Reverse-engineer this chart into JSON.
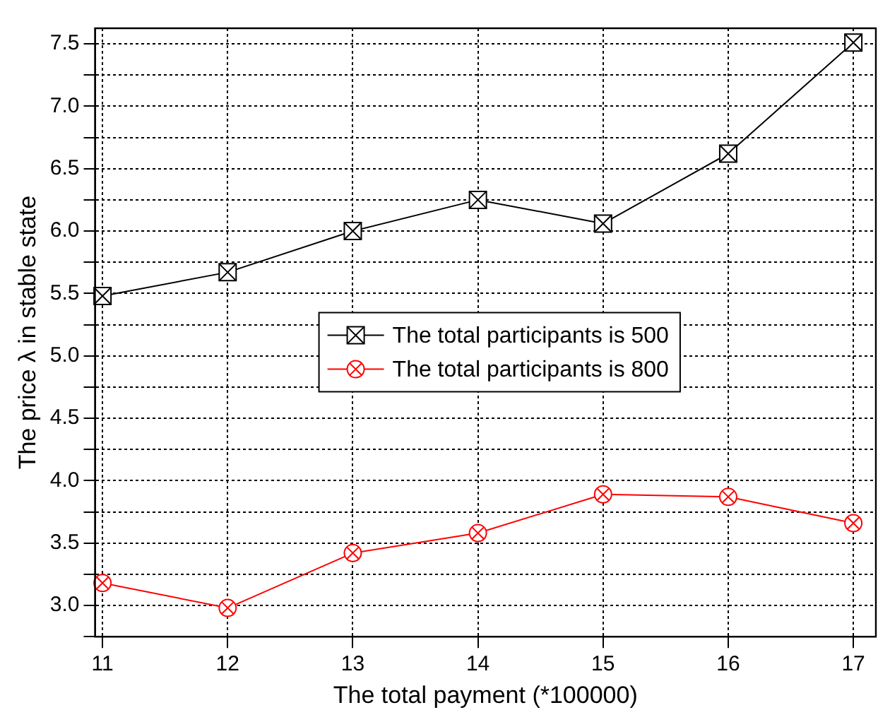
{
  "chart_data": {
    "type": "line",
    "xlabel": "The total payment (*100000)",
    "ylabel": "The price λ in stable state",
    "x": [
      11,
      12,
      13,
      14,
      15,
      16,
      17
    ],
    "series": [
      {
        "name": "The total participants is 500",
        "color": "#000000",
        "marker": "square",
        "values": [
          5.48,
          5.67,
          6.0,
          6.25,
          6.06,
          6.62,
          7.51
        ]
      },
      {
        "name": "The total participants is 800",
        "color": "#ff0000",
        "marker": "circle",
        "values": [
          3.18,
          2.98,
          3.42,
          3.58,
          3.89,
          3.87,
          3.66
        ]
      }
    ],
    "xlim": [
      10.94,
      17.18
    ],
    "xticks": [
      11,
      12,
      13,
      14,
      15,
      16,
      17
    ],
    "ylim": [
      2.75,
      7.625
    ],
    "yticks": [
      {
        "value": 2.75,
        "label": null
      },
      {
        "value": 3,
        "label": "3.0"
      },
      {
        "value": 3.25,
        "label": null
      },
      3.5,
      {
        "value": 3.75,
        "label": null
      },
      {
        "value": 4,
        "label": "4.0"
      },
      {
        "value": 4.25,
        "label": null
      },
      4.5,
      {
        "value": 4.75,
        "label": null
      },
      {
        "value": 5,
        "label": "5.0"
      },
      {
        "value": 5.25,
        "label": null
      },
      5.5,
      {
        "value": 5.75,
        "label": null
      },
      {
        "value": 6,
        "label": "6.0"
      },
      {
        "value": 6.25,
        "label": null
      },
      6.5,
      {
        "value": 6.75,
        "label": null
      },
      {
        "value": 7,
        "label": "7.0"
      },
      {
        "value": 7.25,
        "label": null
      },
      7.5
    ],
    "grid": true,
    "legend": "center",
    "line_style": "solid"
  }
}
